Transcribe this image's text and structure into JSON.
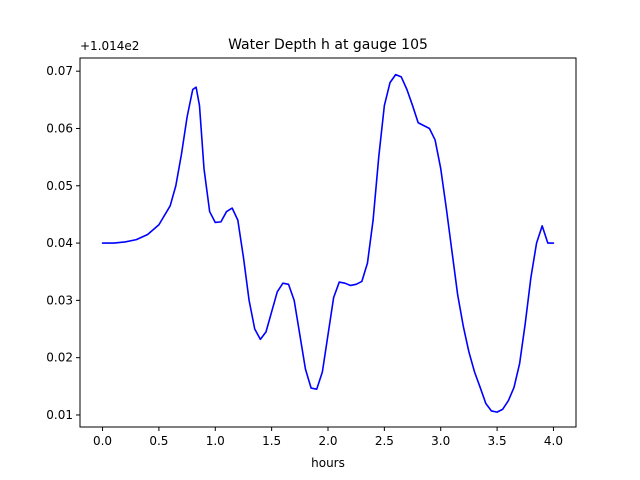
{
  "chart_data": {
    "type": "line",
    "title": "Water Depth h at gauge 105",
    "xlabel": "hours",
    "ylabel": "",
    "y_offset_label": "+1.014e2",
    "xlim": [
      -0.2,
      4.2
    ],
    "ylim": [
      0.0079,
      0.0723
    ],
    "x_ticks": [
      0.0,
      0.5,
      1.0,
      1.5,
      2.0,
      2.5,
      3.0,
      3.5,
      4.0
    ],
    "x_tick_labels": [
      "0.0",
      "0.5",
      "1.0",
      "1.5",
      "2.0",
      "2.5",
      "3.0",
      "3.5",
      "4.0"
    ],
    "y_ticks": [
      0.01,
      0.02,
      0.03,
      0.04,
      0.05,
      0.06,
      0.07
    ],
    "y_tick_labels": [
      "0.01",
      "0.02",
      "0.03",
      "0.04",
      "0.05",
      "0.06",
      "0.07"
    ],
    "grid": false,
    "series": [
      {
        "color": "#0000ff",
        "x": [
          0.0,
          0.1,
          0.2,
          0.3,
          0.4,
          0.5,
          0.6,
          0.65,
          0.7,
          0.75,
          0.8,
          0.83,
          0.86,
          0.9,
          0.95,
          1.0,
          1.05,
          1.1,
          1.15,
          1.2,
          1.25,
          1.3,
          1.35,
          1.4,
          1.45,
          1.5,
          1.55,
          1.6,
          1.65,
          1.7,
          1.75,
          1.8,
          1.85,
          1.9,
          1.95,
          2.0,
          2.05,
          2.1,
          2.15,
          2.2,
          2.25,
          2.3,
          2.35,
          2.4,
          2.45,
          2.5,
          2.55,
          2.6,
          2.65,
          2.7,
          2.75,
          2.8,
          2.85,
          2.9,
          2.95,
          3.0,
          3.05,
          3.1,
          3.15,
          3.2,
          3.25,
          3.3,
          3.35,
          3.4,
          3.45,
          3.5,
          3.55,
          3.6,
          3.65,
          3.7,
          3.75,
          3.8,
          3.85,
          3.9,
          3.95,
          4.0
        ],
        "y": [
          0.04,
          0.04,
          0.0402,
          0.0406,
          0.0415,
          0.0432,
          0.0465,
          0.05,
          0.0555,
          0.062,
          0.0668,
          0.0672,
          0.064,
          0.053,
          0.0455,
          0.0436,
          0.0437,
          0.0455,
          0.0461,
          0.044,
          0.0375,
          0.03,
          0.025,
          0.0232,
          0.0245,
          0.028,
          0.0315,
          0.033,
          0.0328,
          0.03,
          0.024,
          0.018,
          0.0147,
          0.0145,
          0.0175,
          0.024,
          0.0305,
          0.0332,
          0.033,
          0.0326,
          0.0328,
          0.0333,
          0.0365,
          0.044,
          0.055,
          0.064,
          0.068,
          0.0694,
          0.069,
          0.0668,
          0.064,
          0.061,
          0.0605,
          0.06,
          0.058,
          0.053,
          0.046,
          0.0385,
          0.031,
          0.0255,
          0.021,
          0.0175,
          0.0148,
          0.012,
          0.0107,
          0.0105,
          0.011,
          0.0125,
          0.0148,
          0.019,
          0.026,
          0.034,
          0.04,
          0.043,
          0.04,
          0.04
        ]
      }
    ]
  }
}
